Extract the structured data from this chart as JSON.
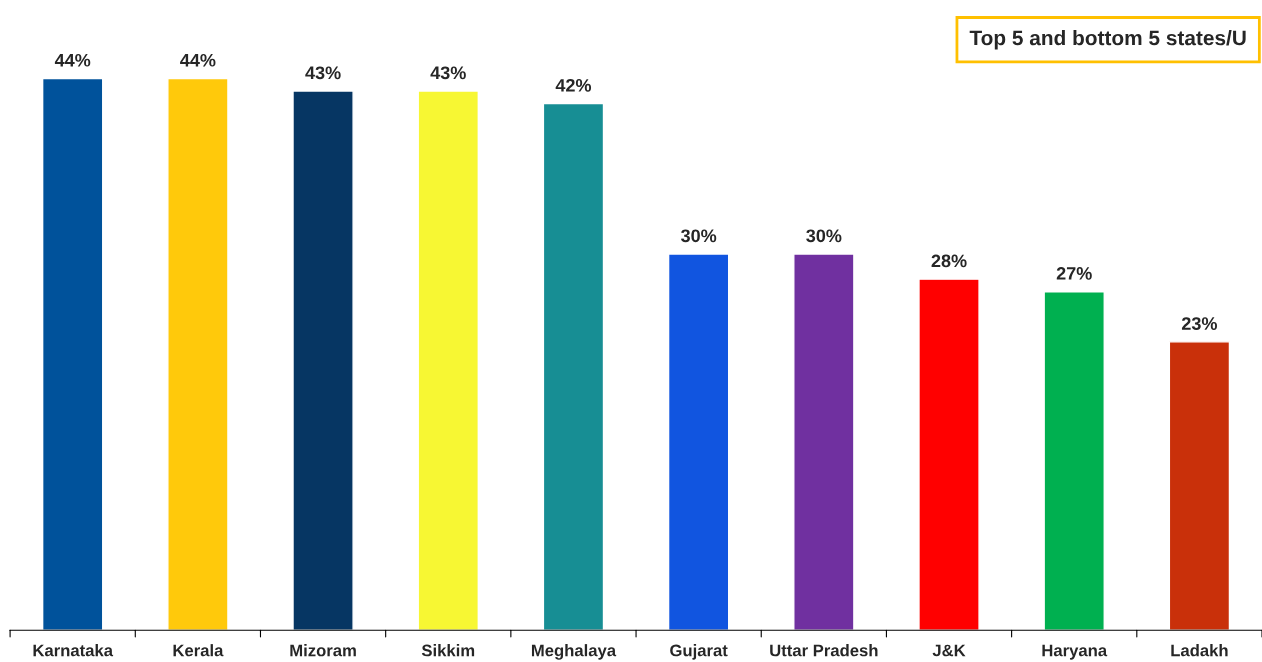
{
  "chart_data": {
    "type": "bar",
    "title": "Top 5 and bottom 5 states/U",
    "categories": [
      "Karnataka",
      "Kerala",
      "Mizoram",
      "Sikkim",
      "Meghalaya",
      "Gujarat",
      "Uttar Pradesh",
      "J&K",
      "Haryana",
      "Ladakh"
    ],
    "values": [
      44,
      44,
      43,
      43,
      42,
      30,
      30,
      28,
      27,
      23
    ],
    "colors": [
      "#00529b",
      "#ffc90b",
      "#063663",
      "#f7f733",
      "#178e94",
      "#1155e0",
      "#7030a0",
      "#ff0000",
      "#00b050",
      "#c9300a"
    ],
    "value_labels": [
      "44%",
      "44%",
      "43%",
      "43%",
      "42%",
      "30%",
      "30%",
      "28%",
      "27%",
      "23%"
    ],
    "grid": false
  }
}
